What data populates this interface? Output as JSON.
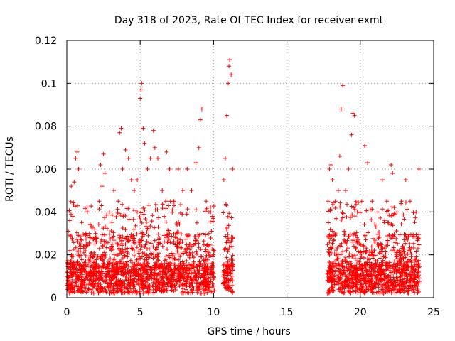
{
  "chart_data": {
    "type": "scatter",
    "title": "Day 318 of 2023, Rate Of TEC Index for receiver exmt",
    "xlabel": "GPS time / hours",
    "ylabel": "ROTI / TECUs",
    "xlim": [
      0,
      25
    ],
    "ylim": [
      0,
      0.12
    ],
    "x_ticks": [
      0,
      5,
      10,
      15,
      20,
      25
    ],
    "x_tick_labels": [
      "0",
      "5",
      "10",
      "15",
      "20",
      "25"
    ],
    "y_ticks": [
      0,
      0.02,
      0.04,
      0.06,
      0.08,
      0.1,
      0.12
    ],
    "y_tick_labels": [
      "0",
      "0.02",
      "0.04",
      "0.06",
      "0.08",
      "0.1",
      "0.12"
    ],
    "grid": true,
    "marker": "+",
    "color": "#ff0000",
    "series": [
      {
        "name": "ROTI",
        "points": [
          [
            0.1,
            0.031
          ],
          [
            0.2,
            0.036
          ],
          [
            0.3,
            0.052
          ],
          [
            0.4,
            0.038
          ],
          [
            0.5,
            0.054
          ],
          [
            0.6,
            0.065
          ],
          [
            0.7,
            0.068
          ],
          [
            0.8,
            0.06
          ],
          [
            1.0,
            0.035
          ],
          [
            1.3,
            0.03
          ],
          [
            1.6,
            0.028
          ],
          [
            1.9,
            0.032
          ],
          [
            2.2,
            0.045
          ],
          [
            2.3,
            0.062
          ],
          [
            2.4,
            0.052
          ],
          [
            2.5,
            0.067
          ],
          [
            2.6,
            0.058
          ],
          [
            2.9,
            0.04
          ],
          [
            3.2,
            0.05
          ],
          [
            3.5,
            0.045
          ],
          [
            3.6,
            0.077
          ],
          [
            3.7,
            0.079
          ],
          [
            3.8,
            0.06
          ],
          [
            4.0,
            0.069
          ],
          [
            4.2,
            0.065
          ],
          [
            4.4,
            0.055
          ],
          [
            4.6,
            0.05
          ],
          [
            4.8,
            0.055
          ],
          [
            5.0,
            0.093
          ],
          [
            5.05,
            0.097
          ],
          [
            5.1,
            0.1
          ],
          [
            5.2,
            0.079
          ],
          [
            5.3,
            0.072
          ],
          [
            5.5,
            0.06
          ],
          [
            5.7,
            0.065
          ],
          [
            5.9,
            0.078
          ],
          [
            6.0,
            0.07
          ],
          [
            6.2,
            0.065
          ],
          [
            6.5,
            0.05
          ],
          [
            6.8,
            0.068
          ],
          [
            7.0,
            0.06
          ],
          [
            7.3,
            0.045
          ],
          [
            7.6,
            0.06
          ],
          [
            7.9,
            0.05
          ],
          [
            8.2,
            0.06
          ],
          [
            8.5,
            0.05
          ],
          [
            8.8,
            0.063
          ],
          [
            9.0,
            0.07
          ],
          [
            9.1,
            0.083
          ],
          [
            9.2,
            0.088
          ],
          [
            9.5,
            0.045
          ],
          [
            9.8,
            0.04
          ],
          [
            10.0,
            0.02
          ],
          [
            10.7,
            0.055
          ],
          [
            10.8,
            0.065
          ],
          [
            10.9,
            0.085
          ],
          [
            11.0,
            0.1
          ],
          [
            11.05,
            0.108
          ],
          [
            11.1,
            0.111
          ],
          [
            11.2,
            0.104
          ],
          [
            11.3,
            0.06
          ],
          [
            17.8,
            0.045
          ],
          [
            17.9,
            0.06
          ],
          [
            18.0,
            0.062
          ],
          [
            18.1,
            0.055
          ],
          [
            18.3,
            0.045
          ],
          [
            18.5,
            0.05
          ],
          [
            18.6,
            0.066
          ],
          [
            18.7,
            0.088
          ],
          [
            18.8,
            0.099
          ],
          [
            19.0,
            0.05
          ],
          [
            19.2,
            0.06
          ],
          [
            19.4,
            0.076
          ],
          [
            19.5,
            0.086
          ],
          [
            19.6,
            0.085
          ],
          [
            19.8,
            0.04
          ],
          [
            20.1,
            0.045
          ],
          [
            20.3,
            0.071
          ],
          [
            20.5,
            0.063
          ],
          [
            20.8,
            0.045
          ],
          [
            21.2,
            0.04
          ],
          [
            21.5,
            0.055
          ],
          [
            21.8,
            0.045
          ],
          [
            22.1,
            0.062
          ],
          [
            22.2,
            0.058
          ],
          [
            22.5,
            0.04
          ],
          [
            22.8,
            0.045
          ],
          [
            23.1,
            0.055
          ],
          [
            23.4,
            0.045
          ],
          [
            23.8,
            0.04
          ],
          [
            24.0,
            0.06
          ]
        ]
      }
    ],
    "generated_background": {
      "description": "dense low-value ROTI scatter band 0.002-0.045 across observed intervals",
      "intervals": [
        [
          0,
          10.05
        ],
        [
          10.65,
          11.35
        ],
        [
          17.75,
          24.05
        ]
      ]
    }
  }
}
